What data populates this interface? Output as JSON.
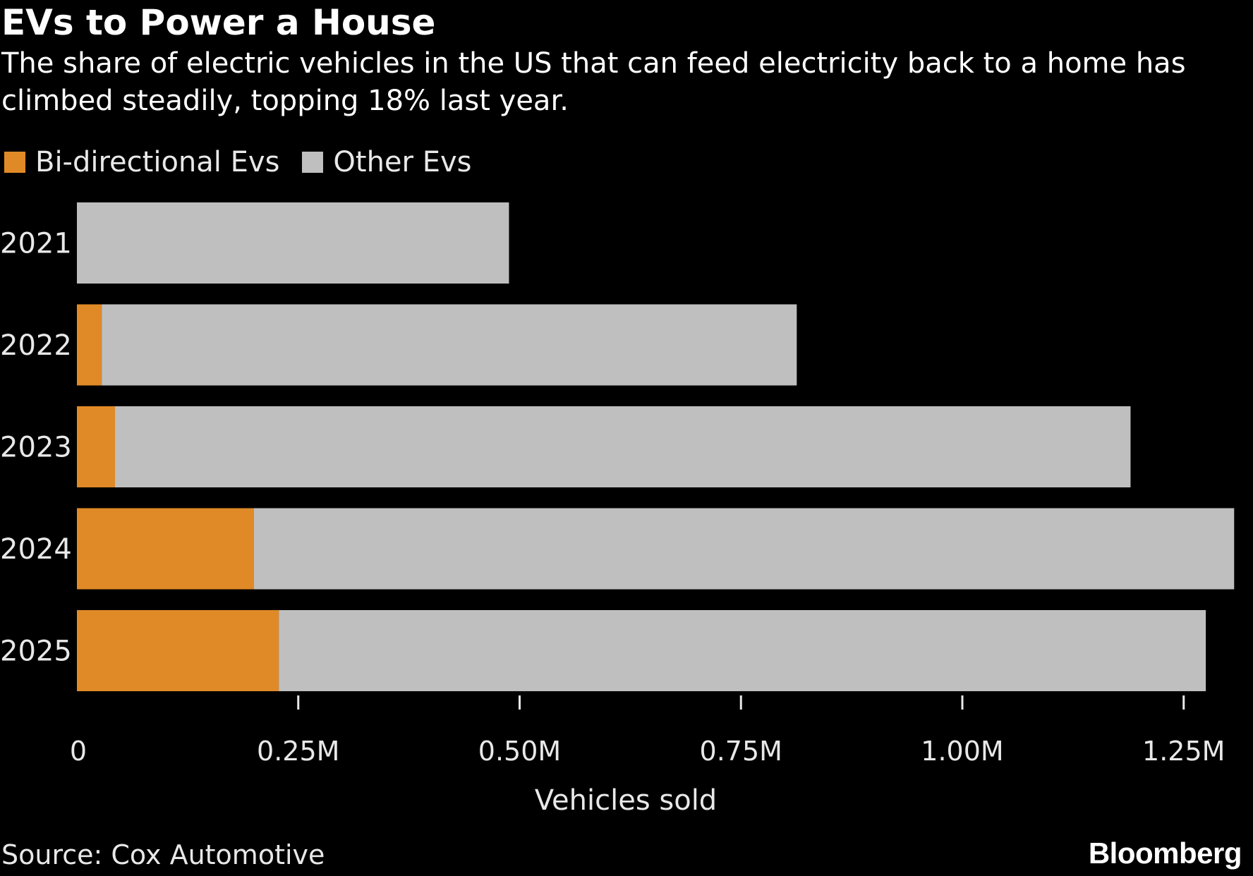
{
  "header": {
    "title": "EVs to Power a House",
    "subtitle": "The share of electric vehicles in the US that can feed electricity back to a home has climbed steadily, topping 18% last year."
  },
  "footer": {
    "source": "Source: Cox Automotive",
    "brand": "Bloomberg"
  },
  "colors": {
    "background": "#000000",
    "bidirectional": "#e08a27",
    "other": "#bfbfbf",
    "text": "#e8e8e8"
  },
  "chart_data": {
    "type": "bar",
    "orientation": "horizontal",
    "stacked": true,
    "title": "EVs to Power a House",
    "xlabel": "Vehicles sold",
    "ylabel": "",
    "xlim": [
      0,
      1300000
    ],
    "grid": false,
    "legend_position": "top-left",
    "categories": [
      "2021",
      "2022",
      "2023",
      "2024",
      "2025"
    ],
    "xticks": [
      {
        "value": 0,
        "label": "0"
      },
      {
        "value": 250000,
        "label": "0.25M"
      },
      {
        "value": 500000,
        "label": "0.50M"
      },
      {
        "value": 750000,
        "label": "0.75M"
      },
      {
        "value": 1000000,
        "label": "1.00M"
      },
      {
        "value": 1250000,
        "label": "1.25M"
      }
    ],
    "series": [
      {
        "name": "Bi-directional Evs",
        "color": "#e08a27",
        "values": [
          0,
          28000,
          43000,
          200000,
          228000
        ]
      },
      {
        "name": "Other Evs",
        "color": "#bfbfbf",
        "values": [
          488000,
          785000,
          1147000,
          1107000,
          1047000
        ]
      }
    ]
  }
}
